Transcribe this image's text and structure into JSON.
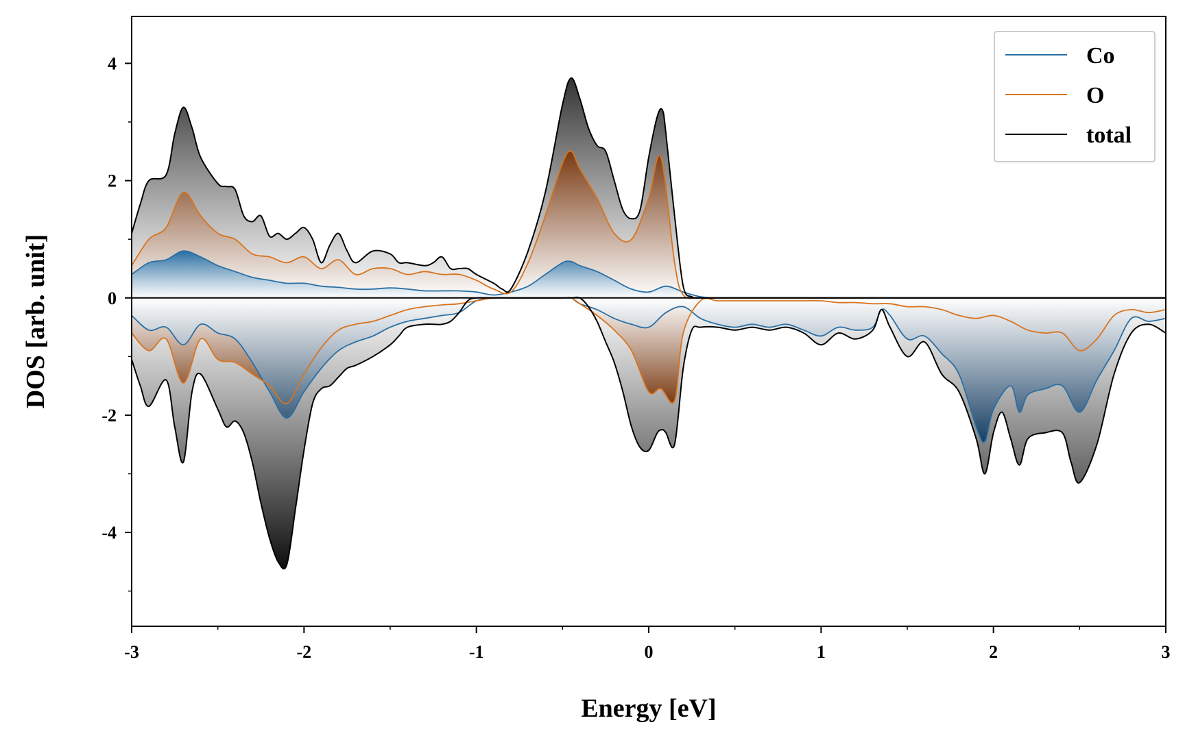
{
  "chart_data": {
    "type": "area",
    "xlabel": "Energy [eV]",
    "ylabel": "DOS [arb. unit]",
    "xlim": [
      -3,
      3
    ],
    "ylim": [
      -5.6,
      4.8
    ],
    "xticks": [
      -3,
      -2,
      -1,
      0,
      1,
      2,
      3
    ],
    "xtick_labels": [
      "-3",
      "-2",
      "-1",
      "0",
      "1",
      "2",
      "3"
    ],
    "yticks": [
      4,
      2,
      0,
      -2,
      -4
    ],
    "ytick_labels": [
      "4",
      "2",
      "0",
      "-2",
      "-4"
    ],
    "legend_position": "top-right",
    "grid": false,
    "series": [
      {
        "name": "Co",
        "color": "#2a6fa3",
        "fill_up": "#2a6fa3",
        "fill_down": "#173f63",
        "x": [
          -3,
          -2.9,
          -2.8,
          -2.7,
          -2.6,
          -2.5,
          -2.4,
          -2.3,
          -2.2,
          -2.1,
          -2,
          -1.9,
          -1.8,
          -1.7,
          -1.6,
          -1.5,
          -1.4,
          -1.3,
          -1.2,
          -1.1,
          -1,
          -0.9,
          -0.8,
          -0.7,
          -0.6,
          -0.5,
          -0.45,
          -0.4,
          -0.3,
          -0.2,
          -0.1,
          0,
          0.1,
          0.2,
          0.3,
          0.4,
          0.5,
          0.6,
          0.7,
          0.8,
          0.9,
          1,
          1.1,
          1.2,
          1.3,
          1.35,
          1.4,
          1.5,
          1.6,
          1.7,
          1.8,
          1.9,
          1.95,
          2,
          2.1,
          2.15,
          2.2,
          2.3,
          2.4,
          2.5,
          2.6,
          2.7,
          2.8,
          2.9,
          3
        ],
        "up": [
          0.4,
          0.6,
          0.65,
          0.8,
          0.7,
          0.55,
          0.45,
          0.35,
          0.3,
          0.25,
          0.25,
          0.2,
          0.18,
          0.15,
          0.15,
          0.17,
          0.15,
          0.12,
          0.12,
          0.12,
          0.1,
          0.05,
          0.1,
          0.2,
          0.4,
          0.6,
          0.62,
          0.55,
          0.45,
          0.3,
          0.15,
          0.1,
          0.2,
          0.1,
          0.02,
          0,
          0,
          0,
          0,
          0,
          0,
          0,
          0,
          0,
          0,
          0,
          0,
          0,
          0,
          0,
          0,
          0,
          0,
          0,
          0,
          0,
          0,
          0,
          0,
          0,
          0,
          0,
          0,
          0,
          0
        ],
        "down": [
          -0.3,
          -0.55,
          -0.5,
          -0.8,
          -0.45,
          -0.6,
          -0.7,
          -1.1,
          -1.6,
          -2.05,
          -1.6,
          -1.2,
          -0.9,
          -0.75,
          -0.65,
          -0.5,
          -0.4,
          -0.35,
          -0.3,
          -0.25,
          -0.05,
          0,
          0,
          0,
          0,
          0,
          0,
          -0.1,
          -0.2,
          -0.35,
          -0.45,
          -0.5,
          -0.25,
          -0.15,
          -0.35,
          -0.45,
          -0.5,
          -0.45,
          -0.5,
          -0.45,
          -0.55,
          -0.65,
          -0.5,
          -0.55,
          -0.5,
          -0.2,
          -0.3,
          -0.7,
          -0.65,
          -0.95,
          -1.3,
          -2.2,
          -2.45,
          -1.9,
          -1.5,
          -1.95,
          -1.65,
          -1.55,
          -1.5,
          -1.95,
          -1.4,
          -0.9,
          -0.35,
          -0.4,
          -0.35
        ]
      },
      {
        "name": "O",
        "color": "#d8741e",
        "fill_up": "#7a3a12",
        "fill_down": "#7a3a12",
        "x": [
          -3,
          -2.9,
          -2.8,
          -2.7,
          -2.6,
          -2.5,
          -2.4,
          -2.3,
          -2.2,
          -2.1,
          -2,
          -1.9,
          -1.8,
          -1.7,
          -1.6,
          -1.5,
          -1.4,
          -1.3,
          -1.2,
          -1.1,
          -1,
          -0.9,
          -0.8,
          -0.7,
          -0.6,
          -0.5,
          -0.45,
          -0.4,
          -0.3,
          -0.2,
          -0.1,
          0,
          0.07,
          0.15,
          0.2,
          0.3,
          0.4,
          0.5,
          0.6,
          0.7,
          0.8,
          0.9,
          1,
          1.1,
          1.2,
          1.3,
          1.4,
          1.5,
          1.6,
          1.7,
          1.8,
          1.9,
          2,
          2.1,
          2.2,
          2.3,
          2.4,
          2.5,
          2.6,
          2.7,
          2.8,
          2.9,
          3
        ],
        "up": [
          0.55,
          1,
          1.2,
          1.8,
          1.4,
          1.1,
          1.0,
          0.75,
          0.7,
          0.6,
          0.7,
          0.5,
          0.65,
          0.4,
          0.5,
          0.5,
          0.4,
          0.45,
          0.4,
          0.4,
          0.3,
          0.15,
          0.1,
          0.6,
          1.4,
          2.3,
          2.5,
          2.2,
          1.7,
          1.1,
          1.0,
          1.7,
          2.4,
          0.6,
          0.05,
          0,
          0,
          0,
          0,
          0,
          0,
          0,
          0,
          0,
          0,
          0,
          0,
          0,
          0,
          0,
          0,
          0,
          0,
          0,
          0,
          0,
          0,
          0,
          0,
          0,
          0,
          0,
          0
        ],
        "down": [
          -0.6,
          -0.9,
          -0.7,
          -1.45,
          -0.7,
          -1.05,
          -1.1,
          -1.3,
          -1.5,
          -1.8,
          -1.3,
          -0.85,
          -0.55,
          -0.45,
          -0.4,
          -0.3,
          -0.2,
          -0.15,
          -0.12,
          -0.1,
          -0.05,
          0,
          0,
          0,
          0,
          0,
          0,
          -0.1,
          -0.3,
          -0.55,
          -0.9,
          -1.6,
          -1.55,
          -1.75,
          -0.6,
          -0.05,
          -0.05,
          -0.05,
          -0.05,
          -0.05,
          -0.05,
          -0.05,
          -0.05,
          -0.08,
          -0.08,
          -0.1,
          -0.1,
          -0.15,
          -0.15,
          -0.2,
          -0.3,
          -0.35,
          -0.3,
          -0.4,
          -0.55,
          -0.6,
          -0.6,
          -0.9,
          -0.7,
          -0.3,
          -0.2,
          -0.25,
          -0.2
        ]
      },
      {
        "name": "total",
        "color": "#000000",
        "fill_up": "#333333",
        "fill_down": "#111111",
        "x": [
          -3,
          -2.95,
          -2.9,
          -2.8,
          -2.75,
          -2.7,
          -2.65,
          -2.6,
          -2.5,
          -2.45,
          -2.4,
          -2.35,
          -2.3,
          -2.25,
          -2.2,
          -2.15,
          -2.1,
          -2.05,
          -2,
          -1.95,
          -1.9,
          -1.85,
          -1.8,
          -1.75,
          -1.7,
          -1.6,
          -1.5,
          -1.45,
          -1.4,
          -1.3,
          -1.25,
          -1.2,
          -1.15,
          -1.1,
          -1.05,
          -1,
          -0.9,
          -0.85,
          -0.8,
          -0.7,
          -0.6,
          -0.5,
          -0.45,
          -0.4,
          -0.35,
          -0.3,
          -0.25,
          -0.2,
          -0.15,
          -0.1,
          -0.05,
          0,
          0.05,
          0.08,
          0.1,
          0.15,
          0.2,
          0.25,
          0.3,
          0.4,
          0.5,
          0.6,
          0.7,
          0.8,
          0.9,
          1,
          1.1,
          1.2,
          1.3,
          1.35,
          1.4,
          1.5,
          1.6,
          1.7,
          1.8,
          1.9,
          1.95,
          2,
          2.05,
          2.1,
          2.15,
          2.2,
          2.3,
          2.4,
          2.45,
          2.5,
          2.6,
          2.7,
          2.8,
          2.9,
          3
        ],
        "up": [
          1.1,
          1.6,
          2.0,
          2.1,
          2.8,
          3.25,
          2.9,
          2.4,
          1.95,
          1.9,
          1.85,
          1.4,
          1.3,
          1.4,
          1.05,
          1.1,
          1.0,
          1.1,
          1.2,
          1.0,
          0.6,
          0.9,
          1.1,
          0.8,
          0.6,
          0.8,
          0.75,
          0.6,
          0.6,
          0.55,
          0.6,
          0.7,
          0.5,
          0.5,
          0.5,
          0.4,
          0.25,
          0.15,
          0.15,
          0.8,
          1.8,
          3.3,
          3.75,
          3.4,
          2.9,
          2.6,
          2.5,
          2.0,
          1.5,
          1.35,
          1.5,
          2.4,
          3.1,
          3.2,
          2.8,
          1.4,
          0.2,
          0.02,
          0,
          0,
          0,
          0,
          0,
          0,
          0,
          0,
          0,
          0,
          0,
          0,
          0,
          0,
          0,
          0,
          0,
          0,
          0,
          0,
          0,
          0,
          0,
          0,
          0,
          0,
          0,
          0,
          0,
          0,
          0,
          0,
          0
        ],
        "down": [
          -1.05,
          -1.5,
          -1.85,
          -1.4,
          -2.2,
          -2.8,
          -1.6,
          -1.3,
          -1.9,
          -2.2,
          -2.1,
          -2.3,
          -2.8,
          -3.5,
          -4.1,
          -4.5,
          -4.55,
          -3.6,
          -2.6,
          -1.8,
          -1.55,
          -1.5,
          -1.35,
          -1.2,
          -1.15,
          -1.0,
          -0.8,
          -0.65,
          -0.5,
          -0.45,
          -0.45,
          -0.45,
          -0.4,
          -0.25,
          -0.05,
          0,
          0,
          0,
          0,
          0,
          0,
          0,
          0,
          0,
          -0.15,
          -0.4,
          -0.75,
          -1.1,
          -1.6,
          -2.2,
          -2.55,
          -2.6,
          -2.3,
          -2.25,
          -2.3,
          -2.5,
          -1.2,
          -0.55,
          -0.5,
          -0.5,
          -0.55,
          -0.5,
          -0.55,
          -0.5,
          -0.6,
          -0.8,
          -0.6,
          -0.7,
          -0.55,
          -0.2,
          -0.5,
          -1.0,
          -0.75,
          -1.3,
          -1.6,
          -2.4,
          -3.0,
          -2.3,
          -1.95,
          -2.4,
          -2.85,
          -2.4,
          -2.3,
          -2.3,
          -2.8,
          -3.15,
          -2.5,
          -1.3,
          -0.6,
          -0.45,
          -0.6
        ]
      }
    ]
  }
}
